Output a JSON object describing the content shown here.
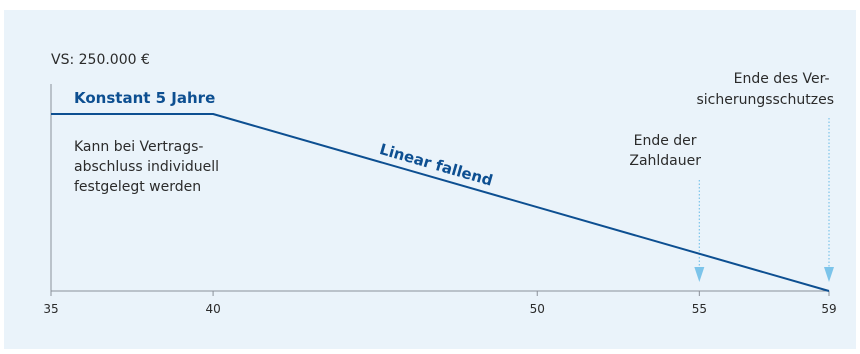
{
  "chart_data": {
    "type": "line",
    "y_caption": "VS: 250.000 €",
    "x_ticks": [
      35,
      40,
      50,
      55,
      59
    ],
    "xlim": [
      35,
      59
    ],
    "ylim": [
      0,
      250000
    ],
    "series": [
      {
        "x": [
          35,
          40,
          59
        ],
        "y": [
          250000,
          250000,
          0
        ]
      }
    ],
    "phases": {
      "constant_label": "Konstant 5 Jahre",
      "constant_note": [
        "Kann bei Vertrags-",
        "abschluss individuell",
        "festgelegt werden"
      ],
      "linear_label": "Linear fallend"
    },
    "markers": [
      {
        "x": 55,
        "label": [
          "Ende der",
          "Zahldauer"
        ]
      },
      {
        "x": 59,
        "label": [
          "Ende des Ver-",
          "sicherungsschutzes"
        ]
      }
    ],
    "colors": {
      "panel_background": "#eaf3fa",
      "line": "#0d4f91",
      "label_blue": "#0d4f91",
      "text": "#2b2b2b",
      "axis": "#8a9099",
      "marker_arrow": "#7cc4ea"
    }
  }
}
